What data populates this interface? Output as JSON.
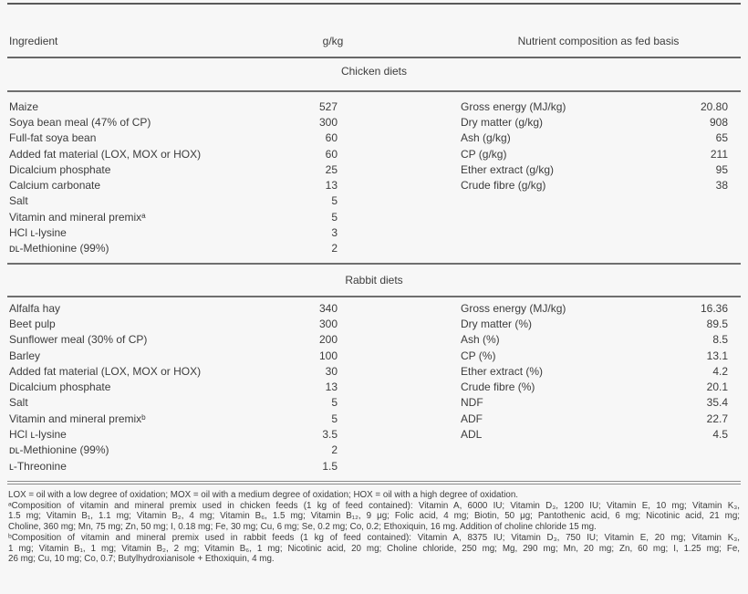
{
  "colors": {
    "text": "#3c3c3c",
    "rule": "#6f6f6f",
    "background": "#f7f7f7"
  },
  "table": {
    "columns": {
      "ingredient": "Ingredient",
      "amount": "g/kg",
      "nutrient": "Nutrient composition as fed basis"
    },
    "sections": [
      {
        "title": "Chicken diets",
        "ingredients": [
          {
            "name": "Maize",
            "amount": "527"
          },
          {
            "name": "Soya bean meal (47% of CP)",
            "amount": "300"
          },
          {
            "name": "Full-fat soya bean",
            "amount": "60"
          },
          {
            "name": "Added fat material (LOX, MOX or HOX)",
            "amount": "60"
          },
          {
            "name": "Dicalcium phosphate",
            "amount": "25"
          },
          {
            "name": "Calcium carbonate",
            "amount": "13"
          },
          {
            "name": "Salt",
            "amount": "5"
          },
          {
            "name": "Vitamin and mineral premixᵃ",
            "amount": "5"
          },
          {
            "name": "HCl ʟ-lysine",
            "amount": "3"
          },
          {
            "name": "ᴅʟ-Methionine (99%)",
            "amount": "2"
          }
        ],
        "nutrients": [
          {
            "name": "Gross energy (MJ/kg)",
            "value": "20.80"
          },
          {
            "name": "Dry matter (g/kg)",
            "value": "908"
          },
          {
            "name": "Ash (g/kg)",
            "value": "65"
          },
          {
            "name": "CP (g/kg)",
            "value": "211"
          },
          {
            "name": "Ether extract (g/kg)",
            "value": "95"
          },
          {
            "name": "Crude fibre (g/kg)",
            "value": "38"
          }
        ]
      },
      {
        "title": "Rabbit diets",
        "ingredients": [
          {
            "name": "Alfalfa hay",
            "amount": "340"
          },
          {
            "name": "Beet pulp",
            "amount": "300"
          },
          {
            "name": "Sunflower meal (30% of CP)",
            "amount": "200"
          },
          {
            "name": "Barley",
            "amount": "100"
          },
          {
            "name": "Added fat material (LOX, MOX or HOX)",
            "amount": "30"
          },
          {
            "name": "Dicalcium phosphate",
            "amount": "13"
          },
          {
            "name": "Salt",
            "amount": "5"
          },
          {
            "name": "Vitamin and mineral premixᵇ",
            "amount": "5"
          },
          {
            "name": "HCl ʟ-lysine",
            "amount": "3.5"
          },
          {
            "name": "ᴅʟ-Methionine (99%)",
            "amount": "2"
          },
          {
            "name": "ʟ-Threonine",
            "amount": "1.5"
          }
        ],
        "nutrients": [
          {
            "name": "Gross energy (MJ/kg)",
            "value": "16.36"
          },
          {
            "name": "Dry matter (%)",
            "value": "89.5"
          },
          {
            "name": "Ash (%)",
            "value": "8.5"
          },
          {
            "name": "CP (%)",
            "value": "13.1"
          },
          {
            "name": "Ether extract (%)",
            "value": "4.2"
          },
          {
            "name": "Crude fibre (%)",
            "value": "20.1"
          },
          {
            "name": "NDF",
            "value": "35.4"
          },
          {
            "name": "ADF",
            "value": "22.7"
          },
          {
            "name": "ADL",
            "value": "4.5"
          }
        ]
      }
    ],
    "footnotes": {
      "lines": [
        "LOX = oil with a low degree of oxidation; MOX = oil with a medium degree of oxidation; HOX = oil with a high degree of oxidation.",
        "ᵃComposition of vitamin and mineral premix used in chicken feeds (1 kg of feed contained): Vitamin A, 6000 IU; Vitamin D₃, 1200 IU; Vitamin E, 10 mg; Vitamin K₃,",
        "1.5 mg; Vitamin B₁, 1.1 mg; Vitamin B₂, 4 mg; Vitamin B₆, 1.5 mg; Vitamin B₁₂, 9 μg; Folic acid, 4 mg; Biotin, 50 μg; Pantothenic acid, 6 mg; Nicotinic acid, 21 mg;",
        "Choline, 360 mg; Mn, 75 mg; Zn, 50 mg; I, 0.18 mg; Fe, 30 mg; Cu, 6 mg; Se, 0.2 mg; Co, 0.2; Ethoxiquin, 16 mg. Addition of choline chloride 15 mg.",
        "ᵇComposition of vitamin and mineral premix used in rabbit feeds (1 kg of feed contained): Vitamin A, 8375 IU; Vitamin D₃, 750 IU; Vitamin E, 20 mg; Vitamin K₃,",
        "1 mg; Vitamin B₁, 1 mg; Vitamin B₂, 2 mg; Vitamin B₆, 1 mg; Nicotinic acid, 20 mg; Choline chloride, 250 mg; Mg, 290 mg; Mn, 20 mg; Zn, 60 mg; I, 1.25 mg; Fe,",
        "26 mg; Cu, 10 mg; Co, 0.7; Butylhydroxianisole + Ethoxiquin, 4 mg."
      ]
    }
  }
}
